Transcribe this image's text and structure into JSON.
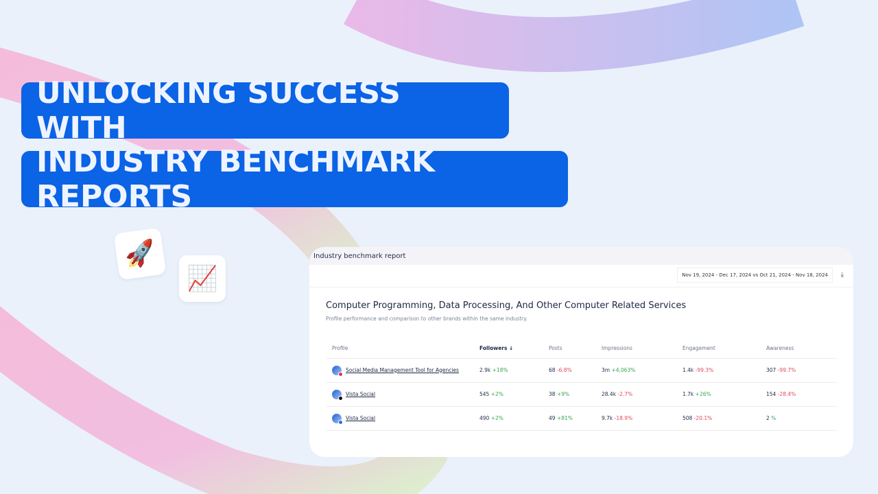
{
  "headline": {
    "line1": "UNLOCKING SUCCESS WITH",
    "line2": "INDUSTRY BENCHMARK REPORTS"
  },
  "emojis": {
    "rocket": "🚀",
    "chart": "📈"
  },
  "card": {
    "title": "Industry benchmark report",
    "date_range": "Nov 19, 2024 - Dec 17, 2024 vs Oct 21, 2024 - Nov 18, 2024",
    "download_icon": "⤓",
    "heading": "Computer Programming, Data Processing, And Other Computer Related Services",
    "subheading": "Profile performance and comparison to other brands within the same industry.",
    "columns": [
      "Profile",
      "Followers ↓",
      "Posts",
      "Impressions",
      "Engagement",
      "Awareness"
    ],
    "rows": [
      {
        "profile": "Social Media Management Tool for Agencies",
        "network": "instagram",
        "badge_color": "#e1306c",
        "cells": [
          [
            "2.9k",
            "+18%",
            "pos"
          ],
          [
            "68",
            "-6.8%",
            "neg"
          ],
          [
            "3m",
            "+4,063%",
            "pos"
          ],
          [
            "1.4k",
            "-99.3%",
            "neg"
          ],
          [
            "307",
            "-99.7%",
            "neg"
          ]
        ]
      },
      {
        "profile": "Vista Social",
        "network": "tiktok",
        "badge_color": "#111111",
        "cells": [
          [
            "545",
            "+2%",
            "pos"
          ],
          [
            "38",
            "+9%",
            "pos"
          ],
          [
            "28.4k",
            "-2.7%",
            "neg"
          ],
          [
            "1.7k",
            "+26%",
            "pos"
          ],
          [
            "154",
            "-28.4%",
            "neg"
          ]
        ]
      },
      {
        "profile": "Vista Social",
        "network": "facebook",
        "badge_color": "#1877f2",
        "cells": [
          [
            "490",
            "+2%",
            "pos"
          ],
          [
            "49",
            "+81%",
            "pos"
          ],
          [
            "9.7k",
            "-18.9%",
            "neg"
          ],
          [
            "508",
            "-20.1%",
            "neg"
          ],
          [
            "2",
            "%",
            "pos"
          ]
        ]
      }
    ]
  }
}
